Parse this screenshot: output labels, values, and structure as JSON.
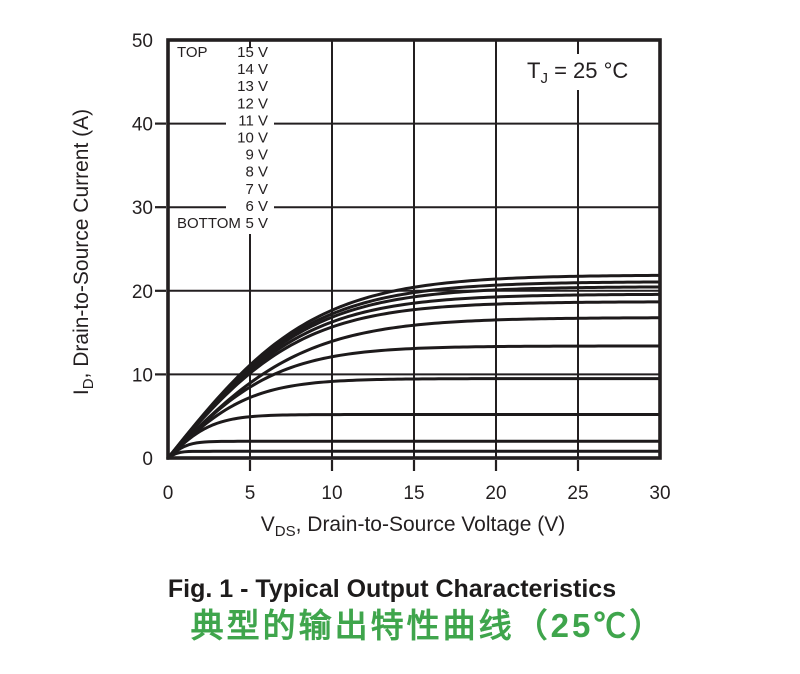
{
  "figure": {
    "caption_en": "Fig. 1 - Typical Output Characteristics",
    "caption_zh": "典型的输出特性曲线（25℃）",
    "accent_green": "#3fa54c",
    "ink": "#231f20"
  },
  "chart_data": {
    "type": "line",
    "title": "Fig. 1 - Typical Output Characteristics",
    "xlabel": "VDS, Drain-to-Source Voltage (V)",
    "ylabel": "ID, Drain-to-Source Current (A)",
    "xlabel_parts": {
      "main": "V",
      "sub": "DS",
      "rest": ", Drain-to-Source Voltage (V)"
    },
    "ylabel_parts": {
      "main": "I",
      "sub": "D",
      "rest": ", Drain-to-Source Current (A)"
    },
    "annotation": "TJ = 25 °C",
    "annotation_parts": {
      "main": "T",
      "sub": "J",
      "rest": " = 25 °C"
    },
    "xlim": [
      0,
      30
    ],
    "ylim": [
      0,
      50
    ],
    "xticks": [
      0,
      5,
      10,
      15,
      20,
      25,
      30
    ],
    "yticks": [
      0,
      10,
      20,
      30,
      40,
      50
    ],
    "grid": true,
    "legend": {
      "top_label": "TOP",
      "bottom_label": "BOTTOM",
      "position": "upper-left",
      "entries": [
        "15 V",
        "14 V",
        "13 V",
        "12 V",
        "11 V",
        "10 V",
        "9 V",
        "8 V",
        "7 V",
        "6 V",
        "5 V"
      ]
    },
    "x_samples": [
      0,
      1,
      2,
      3,
      4,
      5,
      6,
      8,
      10,
      12,
      15,
      20,
      25,
      30
    ],
    "series": [
      {
        "name": "15 V",
        "vgs": 15,
        "isat": 21.9,
        "slope": 2.45,
        "values": [
          0,
          2.44,
          4.82,
          7.08,
          9.2,
          11.11,
          12.82,
          15.64,
          17.67,
          19.1,
          20.43,
          21.41,
          21.75,
          21.85
        ]
      },
      {
        "name": "14 V",
        "vgs": 14,
        "isat": 21.1,
        "slope": 2.42,
        "values": [
          0,
          2.41,
          4.76,
          6.99,
          9.05,
          10.93,
          12.59,
          15.29,
          17.23,
          18.57,
          19.79,
          20.7,
          20.98,
          21.06
        ]
      },
      {
        "name": "13 V",
        "vgs": 13,
        "isat": 20.5,
        "slope": 2.38,
        "values": [
          0,
          2.37,
          4.68,
          6.87,
          8.89,
          10.72,
          12.35,
          14.96,
          16.84,
          18.12,
          19.27,
          20.12,
          20.39,
          20.47
        ]
      },
      {
        "name": "12 V",
        "vgs": 12,
        "isat": 19.6,
        "slope": 2.33,
        "values": [
          0,
          2.32,
          4.57,
          6.71,
          8.68,
          10.45,
          12.0,
          14.5,
          16.27,
          17.46,
          18.52,
          19.28,
          19.5,
          19.57
        ]
      },
      {
        "name": "11 V",
        "vgs": 11,
        "isat": 18.7,
        "slope": 2.27,
        "values": [
          0,
          2.26,
          4.45,
          6.52,
          8.43,
          10.13,
          11.62,
          14.01,
          15.66,
          16.77,
          17.74,
          18.41,
          18.61,
          18.67
        ]
      },
      {
        "name": "10 V",
        "vgs": 10,
        "isat": 16.8,
        "slope": 2.0,
        "values": [
          0,
          1.99,
          3.93,
          5.76,
          7.45,
          8.96,
          10.3,
          12.44,
          13.96,
          14.97,
          15.88,
          16.52,
          16.71,
          16.77
        ]
      },
      {
        "name": "9 V",
        "vgs": 9,
        "isat": 13.4,
        "slope": 2.0,
        "values": [
          0,
          1.99,
          3.89,
          5.63,
          7.17,
          8.48,
          9.57,
          11.14,
          12.11,
          12.68,
          13.1,
          13.35,
          13.39,
          13.4
        ]
      },
      {
        "name": "8 V",
        "vgs": 8,
        "isat": 9.5,
        "slope": 1.9,
        "values": [
          0,
          1.88,
          3.61,
          5.1,
          6.31,
          7.24,
          7.92,
          8.76,
          9.16,
          9.35,
          9.45,
          9.49,
          9.5,
          9.5
        ]
      },
      {
        "name": "7 V",
        "vgs": 7,
        "isat": 5.2,
        "slope": 1.9,
        "values": [
          0,
          1.82,
          3.24,
          4.16,
          4.67,
          4.94,
          5.07,
          5.17,
          5.19,
          5.2,
          5.2,
          5.2,
          5.2,
          5.2
        ]
      },
      {
        "name": "6 V",
        "vgs": 6,
        "isat": 2.0,
        "slope": 1.7,
        "values": [
          0,
          1.38,
          1.87,
          1.98,
          2.0,
          2.0,
          2.0,
          2.0,
          2.0,
          2.0,
          2.0,
          2.0,
          2.0,
          2.0
        ]
      },
      {
        "name": "5 V",
        "vgs": 5,
        "isat": 0.8,
        "slope": 1.3,
        "values": [
          0,
          0.74,
          0.8,
          0.8,
          0.8,
          0.8,
          0.8,
          0.8,
          0.8,
          0.8,
          0.8,
          0.8,
          0.8,
          0.8
        ]
      }
    ]
  }
}
